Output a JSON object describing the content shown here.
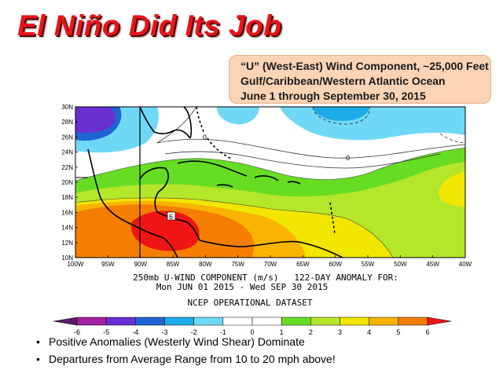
{
  "title": "El Niño Did Its Job",
  "callout": {
    "line1": "“U” (West-East) Wind Component, ~25,000 Feet",
    "line2": "Gulf/Caribbean/Western Atlantic Ocean",
    "line3": "June 1 through September 30, 2015"
  },
  "map": {
    "lat_labels": [
      "30N",
      "28N",
      "26N",
      "24N",
      "22N",
      "20N",
      "18N",
      "16N",
      "14N",
      "12N",
      "10N"
    ],
    "lon_labels": [
      "100W",
      "95W",
      "90W",
      "85W",
      "80W",
      "75W",
      "70W",
      "65W",
      "60W",
      "55W",
      "50W",
      "45W",
      "40W"
    ],
    "contour_labels": {
      "zero_a": "0",
      "zero_b": "0",
      "six": "6"
    },
    "caption_line1": "250mb U-WIND COMPONENT (m/s)   122-DAY ANOMALY FOR:",
    "caption_line2": "Mon JUN 01 2015 - Wed SEP 30 2015",
    "dataset": "NCEP OPERATIONAL DATASET"
  },
  "colorbar": {
    "labels": [
      "-6",
      "-5",
      "-4",
      "-3",
      "-2",
      "-1",
      "0",
      "1",
      "2",
      "3",
      "4",
      "5",
      "6"
    ],
    "colors": [
      "#a020a0",
      "#6a2fd0",
      "#1e64d2",
      "#1eaae6",
      "#6fd8f6",
      "#ffffff",
      "#ffffff",
      "#66dd22",
      "#b4e62a",
      "#f0e600",
      "#f8b400",
      "#f57e00",
      "#f24b1a",
      "#f01515"
    ]
  },
  "bullets": [
    "Positive Anomalies (Westerly Wind Shear) Dominate",
    "Departures from Average Range from 10 to 20 mph above!"
  ]
}
